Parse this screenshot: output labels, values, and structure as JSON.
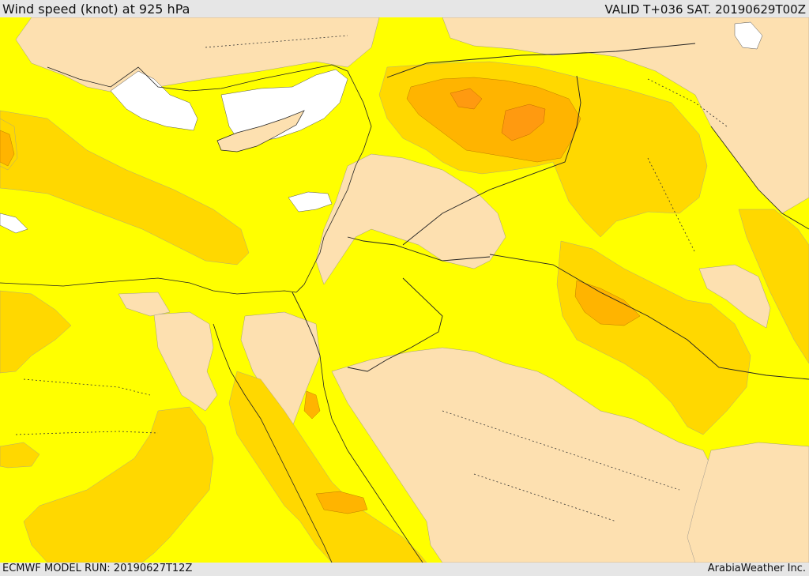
{
  "header": {
    "title": "Wind speed (knot) at 925 hPa",
    "valid": "VALID T+036 SAT. 20190629T00Z"
  },
  "footer": {
    "model_run": "ECMWF MODEL RUN: 20190627T12Z",
    "credit": "ArabiaWeather Inc."
  },
  "map": {
    "colors": {
      "calm_wheat": "#fde0b0",
      "land_background": "#ffff00",
      "moderate_gold": "#ffd800",
      "strong_amber": "#ffb400",
      "strongest_orange": "#ff9a10",
      "no_data_white": "#ffffff",
      "boundary_line": "#222222"
    }
  }
}
